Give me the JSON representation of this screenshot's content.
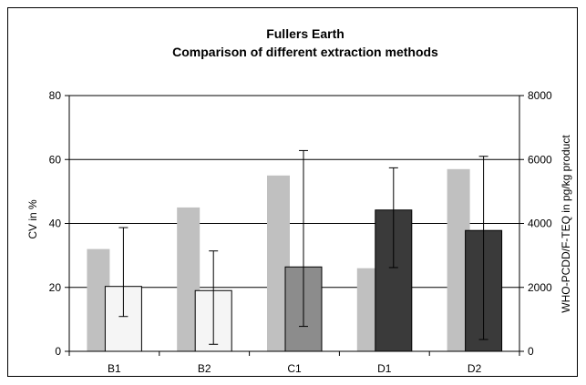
{
  "chart_data": {
    "type": "bar",
    "title": "Fullers Earth",
    "subtitle": "Comparison of different extraction methods",
    "categories": [
      "B1",
      "B2",
      "C1",
      "D1",
      "D2"
    ],
    "ylabel_left": "CV in %",
    "ylabel_right": "WHO-PCDD/F-TEQ in pg/kg product",
    "ylim_left": [
      0,
      80
    ],
    "ylim_right": [
      0,
      8000
    ],
    "yticks_left": [
      "0",
      "20",
      "40",
      "60",
      "80"
    ],
    "yticks_right": [
      "0",
      "2000",
      "4000",
      "6000",
      "8000"
    ],
    "grid": true,
    "series": [
      {
        "axis": "left",
        "color": "#c0c0c0",
        "values": [
          32,
          45,
          55,
          26,
          57
        ]
      },
      {
        "axis": "right",
        "colors": [
          "#f5f5f5",
          "#f5f5f5",
          "#8c8c8c",
          "#3a3a3a",
          "#3a3a3a"
        ],
        "values": [
          2030,
          1900,
          2640,
          4420,
          3780
        ],
        "error_low": [
          1090,
          220,
          780,
          2620,
          370
        ],
        "error_high": [
          3870,
          3140,
          6280,
          5740,
          6100
        ]
      }
    ]
  }
}
